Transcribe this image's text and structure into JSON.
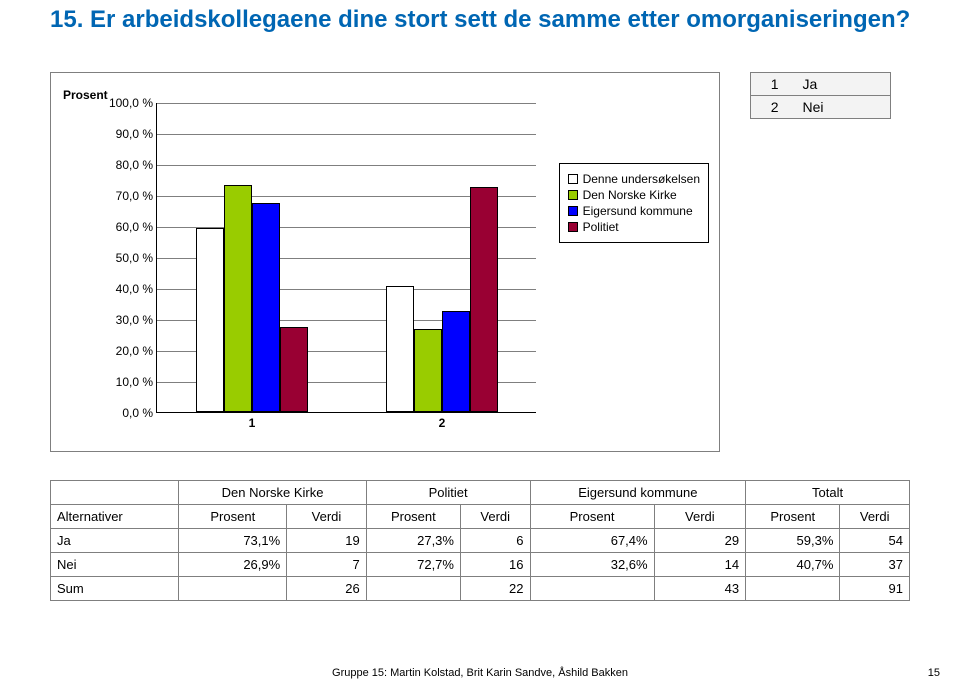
{
  "title": "15. Er arbeidskollegaene dine stort sett de samme etter omorganiseringen?",
  "answerLegend": {
    "rows": [
      {
        "num": "1",
        "label": "Ja"
      },
      {
        "num": "2",
        "label": "Nei"
      }
    ]
  },
  "chart": {
    "yAxisTitle": "Prosent",
    "ylim": [
      0,
      100
    ],
    "yTicks": [
      "0,0 %",
      "10,0 %",
      "20,0 %",
      "30,0 %",
      "40,0 %",
      "50,0 %",
      "60,0 %",
      "70,0 %",
      "80,0 %",
      "90,0 %",
      "100,0 %"
    ],
    "xTicks": [
      "1",
      "2"
    ],
    "background": "#ffffff",
    "gridColor": "#7f7f7f",
    "legend": [
      {
        "label": "Denne undersøkelsen",
        "color": "#ffffff"
      },
      {
        "label": "Den Norske Kirke",
        "color": "#99cc00"
      },
      {
        "label": "Eigersund kommune",
        "color": "#0000ff"
      },
      {
        "label": "Politiet",
        "color": "#990033"
      }
    ],
    "series": [
      {
        "name": "Denne undersøkelsen",
        "color": "#ffffff",
        "values": [
          59.3,
          40.7
        ]
      },
      {
        "name": "Den Norske Kirke",
        "color": "#99cc00",
        "values": [
          73.1,
          26.9
        ]
      },
      {
        "name": "Eigersund kommune",
        "color": "#0000ff",
        "values": [
          67.4,
          32.6
        ]
      },
      {
        "name": "Politiet",
        "color": "#990033",
        "values": [
          27.3,
          72.7
        ]
      }
    ]
  },
  "table": {
    "cornerLabel": "Alternativer",
    "groupHeaders": [
      "Den Norske Kirke",
      "Politiet",
      "Eigersund kommune",
      "Totalt"
    ],
    "subHeaders": [
      "Prosent",
      "Verdi",
      "Prosent",
      "Verdi",
      "Prosent",
      "Verdi",
      "Prosent",
      "Verdi"
    ],
    "rows": [
      {
        "label": "Ja",
        "cells": [
          "73,1%",
          "19",
          "27,3%",
          "6",
          "67,4%",
          "29",
          "59,3%",
          "54"
        ]
      },
      {
        "label": "Nei",
        "cells": [
          "26,9%",
          "7",
          "72,7%",
          "16",
          "32,6%",
          "14",
          "40,7%",
          "37"
        ]
      },
      {
        "label": "Sum",
        "cells": [
          "",
          "26",
          "",
          "22",
          "",
          "43",
          "",
          "91"
        ]
      }
    ]
  },
  "footer": {
    "text": "Gruppe 15: Martin Kolstad, Brit Karin Sandve, Åshild Bakken",
    "page": "15"
  }
}
